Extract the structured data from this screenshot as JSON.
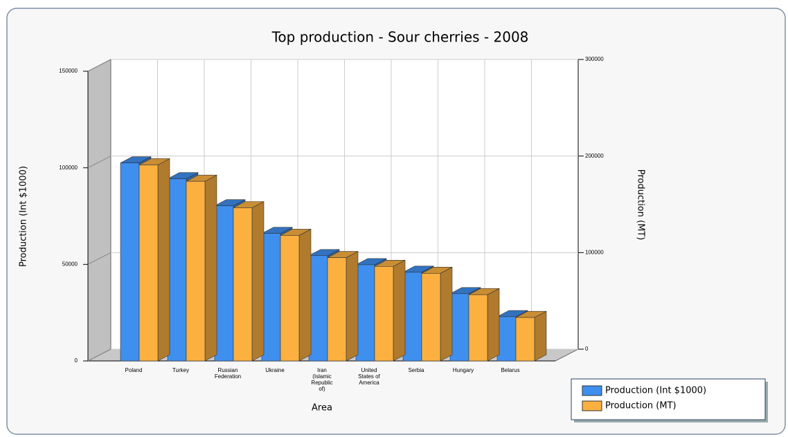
{
  "chart_data": {
    "type": "bar3d",
    "title": "Top production - Sour cherries - 2008",
    "x_label": "Area",
    "y_label": "Production (Int $1000)",
    "y2_label": "Production (MT)",
    "categories": [
      "Poland",
      "Turkey",
      "Russian Federation",
      "Ukraine",
      "Iran (Islamic Republic of)",
      "United States of America",
      "Serbia",
      "Hungary",
      "Belarus"
    ],
    "series": [
      {
        "name": "Production (Int $1000)",
        "color": "#3f8fef",
        "values": [
          102500,
          94300,
          80300,
          66000,
          54500,
          49800,
          45900,
          34800,
          22900
        ]
      },
      {
        "name": "Production (MT)",
        "color": "#fbb040",
        "axis": "y2",
        "values": [
          203000,
          186000,
          158600,
          130000,
          107000,
          97900,
          90700,
          68600,
          45000
        ]
      }
    ],
    "ylim": [
      0,
      150000
    ],
    "yticks": [
      0,
      50000,
      100000,
      150000
    ],
    "y2lim": [
      0,
      300000
    ],
    "y2ticks": [
      0,
      100000,
      200000,
      300000
    ],
    "grid": true,
    "legend": "bottom-right"
  }
}
